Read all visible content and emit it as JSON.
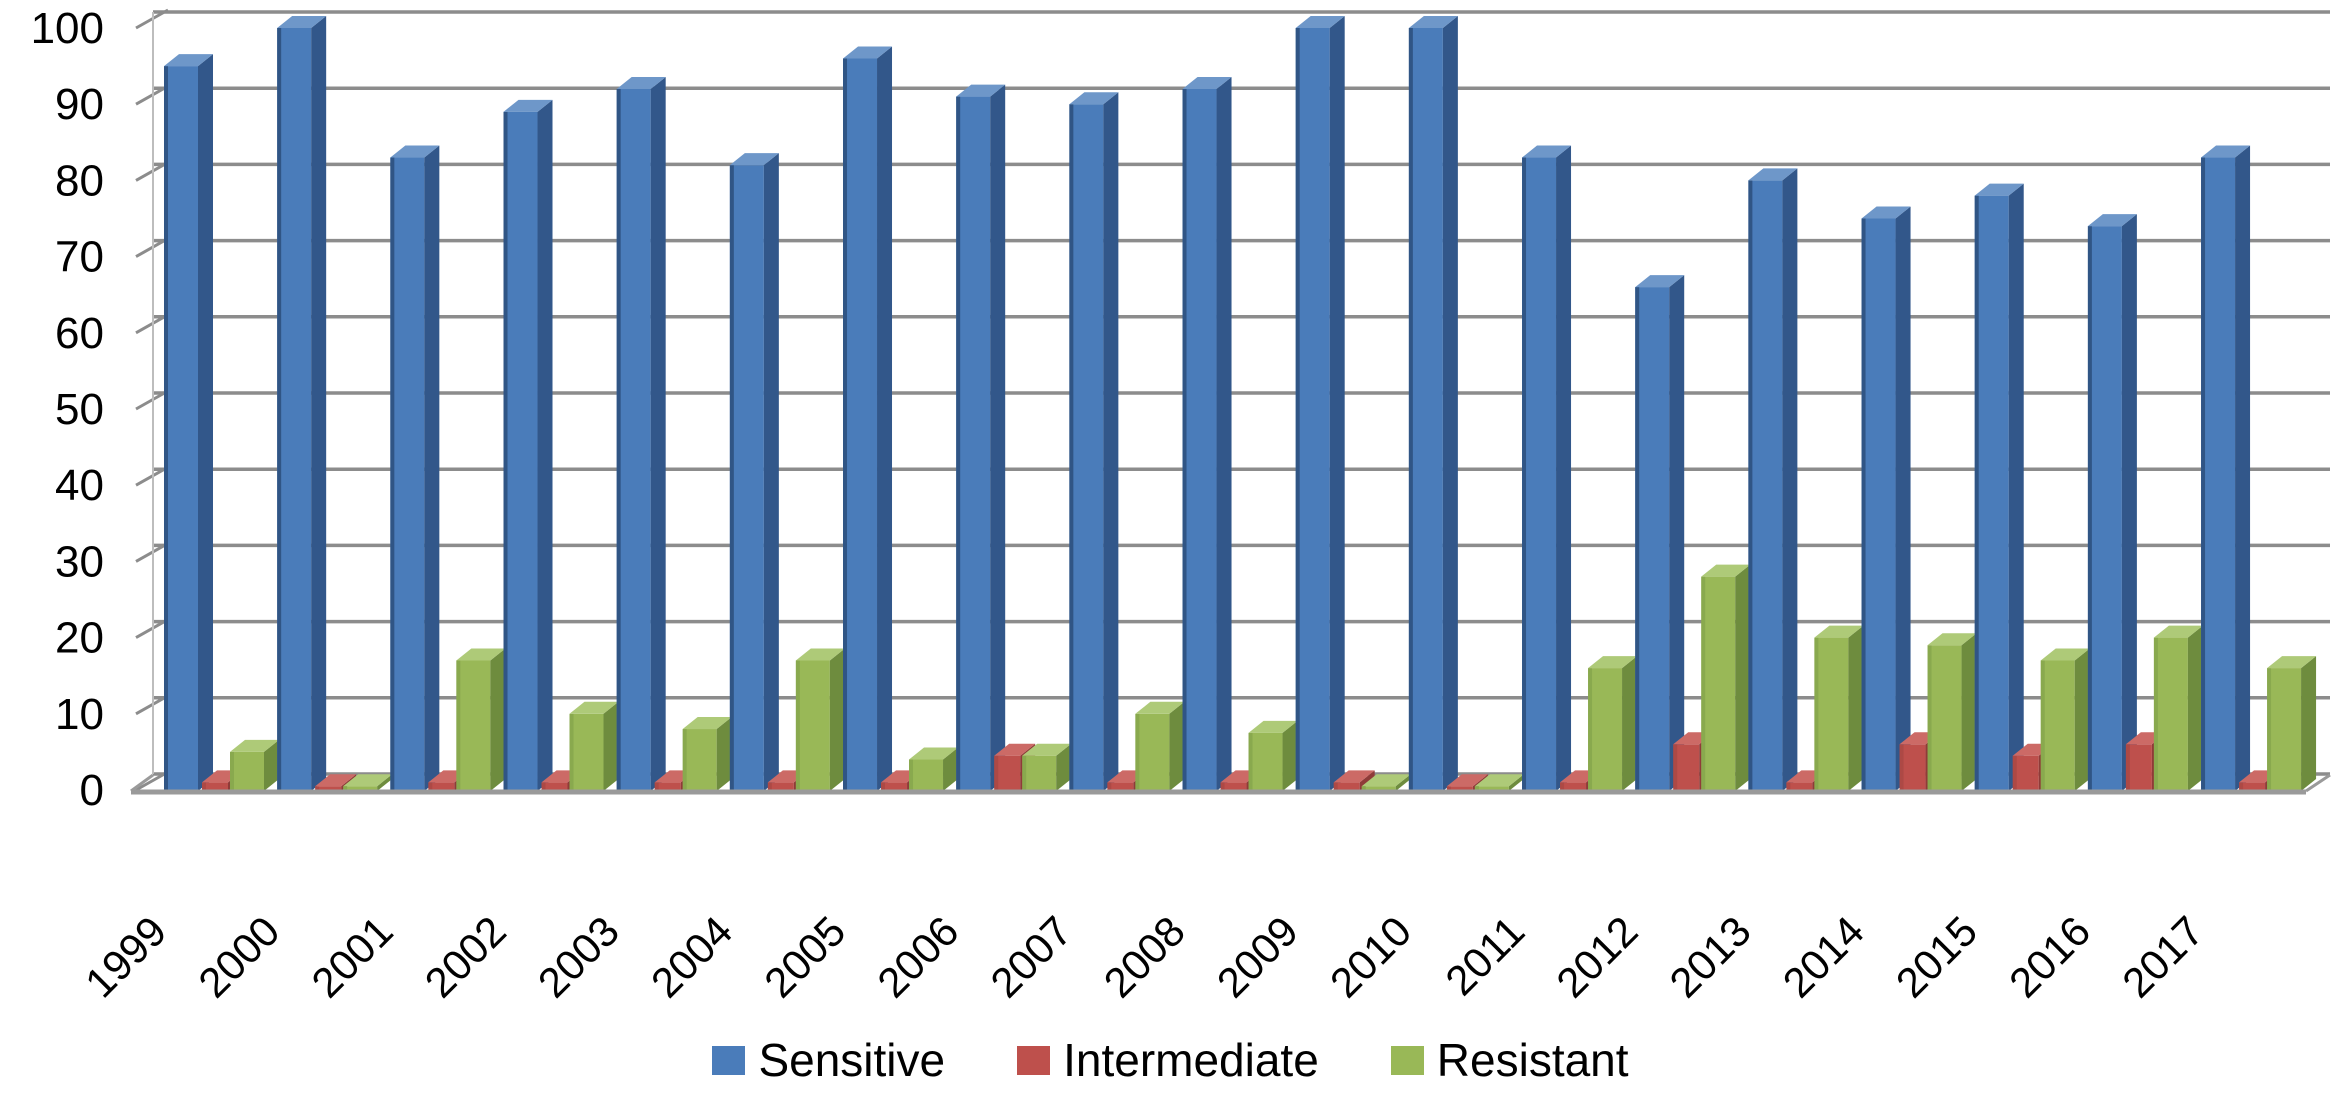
{
  "figure": {
    "background": "#ffffff",
    "gridline_color": "#8C8C8C",
    "floor_color": "#9A9A9A",
    "wall_edge_color": "#BDBDBD",
    "text_color": "#000000"
  },
  "legend": {
    "position": "bottom-center",
    "items": [
      {
        "label": "Sensitive",
        "color": "#4A7CBA"
      },
      {
        "label": "Intermediate",
        "color": "#BE504C"
      },
      {
        "label": "Resistant",
        "color": "#99B857"
      }
    ]
  },
  "chart_data": {
    "type": "bar",
    "style": "3d-column",
    "title": "",
    "xlabel": "",
    "ylabel": "",
    "ylim": [
      0,
      100
    ],
    "ytick_step": 10,
    "yticks": [
      "0",
      "10",
      "20",
      "30",
      "40",
      "50",
      "60",
      "70",
      "80",
      "90",
      "100"
    ],
    "grid": true,
    "legend_position": "bottom",
    "categories": [
      "1999",
      "2000",
      "2001",
      "2002",
      "2003",
      "2004",
      "2005",
      "2006",
      "2007",
      "2008",
      "2009",
      "2010",
      "2011",
      "2012",
      "2013",
      "2014",
      "2015",
      "2016",
      "2017"
    ],
    "series": [
      {
        "name": "Sensitive",
        "color": "#4A7CBA",
        "side_color": "#32578A",
        "top_color": "#6E97C9",
        "edge_color": "#2E5180",
        "values": [
          95,
          100,
          83,
          89,
          92,
          82,
          96,
          91,
          90,
          92,
          100,
          100,
          83,
          66,
          80,
          75,
          78,
          74,
          83
        ]
      },
      {
        "name": "Intermediate",
        "color": "#BE504C",
        "side_color": "#8F3B38",
        "top_color": "#CC6A66",
        "edge_color": "#8F3B38",
        "values": [
          1,
          0.5,
          1,
          1,
          1,
          1,
          1,
          4.5,
          1,
          1,
          1,
          0.5,
          1,
          6,
          1,
          6,
          4.5,
          6,
          1
        ]
      },
      {
        "name": "Resistant",
        "color": "#99B857",
        "side_color": "#6E8C3E",
        "top_color": "#AECA78",
        "edge_color": "#6E8C3E",
        "values": [
          5,
          0.5,
          17,
          10,
          8,
          17,
          4,
          4.5,
          10,
          7.5,
          0.5,
          0.5,
          16,
          28,
          20,
          19,
          17,
          20,
          16
        ]
      }
    ]
  }
}
